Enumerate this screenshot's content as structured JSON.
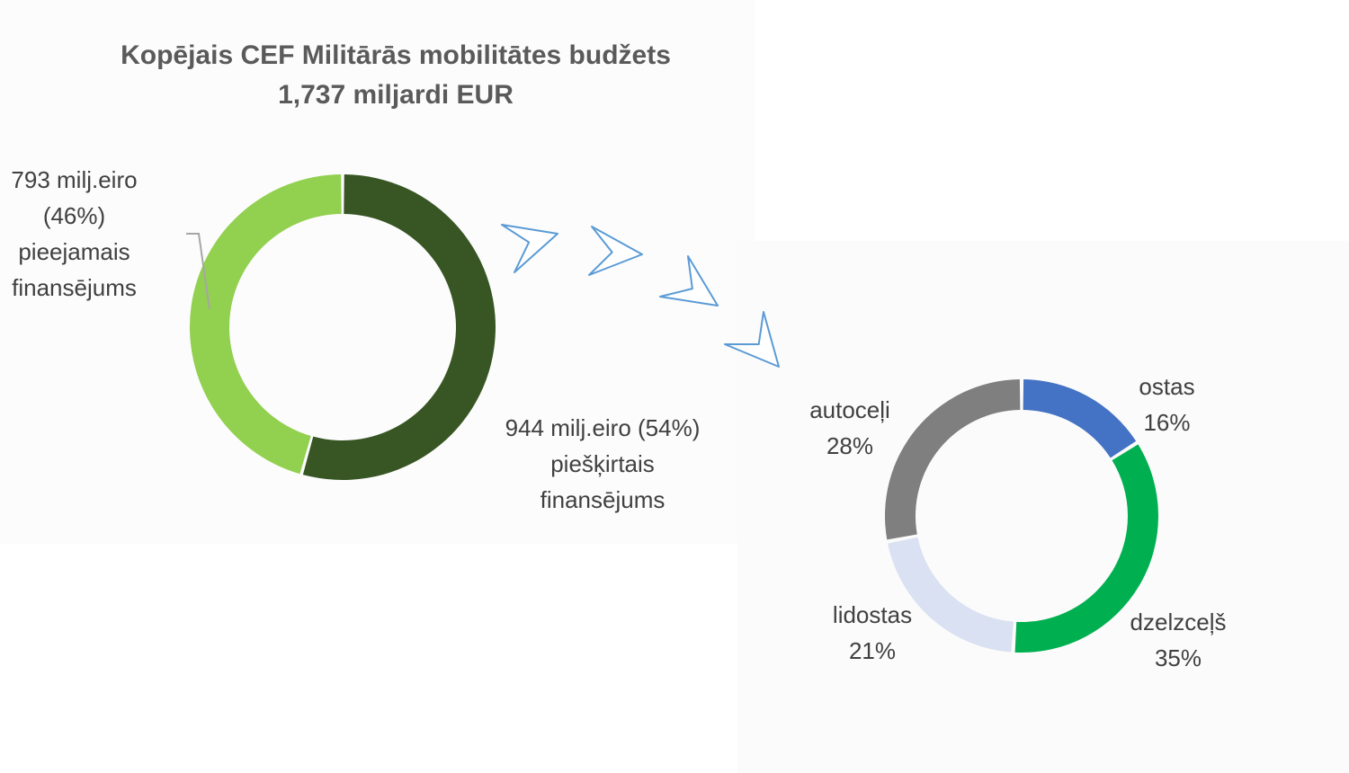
{
  "title": {
    "line1": "Kopējais CEF Militārās mobilitātes budžets",
    "line2": "1,737 miljardi EUR"
  },
  "chart_data": [
    {
      "type": "pie",
      "subtype": "donut",
      "slices": [
        {
          "label_lines": [
            "944 milj.eiro (54%)",
            "piešķirtais",
            "finansējums"
          ],
          "value": 944,
          "percent": 54,
          "color": "#375623"
        },
        {
          "label_lines": [
            "793 milj.eiro",
            "(46%)",
            "pieejamais",
            "finansējums"
          ],
          "value": 793,
          "percent": 46,
          "color": "#92d050"
        }
      ]
    },
    {
      "type": "pie",
      "subtype": "donut",
      "slices": [
        {
          "label_lines": [
            "ostas",
            "16%"
          ],
          "value": 16,
          "color": "#4472c4"
        },
        {
          "label_lines": [
            "dzelzceļš",
            "35%"
          ],
          "value": 35,
          "color": "#00b050"
        },
        {
          "label_lines": [
            "lidostas",
            "21%"
          ],
          "value": 21,
          "color": "#d9e1f2"
        },
        {
          "label_lines": [
            "autoceļi",
            "28%"
          ],
          "value": 28,
          "color": "#7f7f7f"
        }
      ]
    }
  ],
  "arrow_color": "#5b9bd5"
}
